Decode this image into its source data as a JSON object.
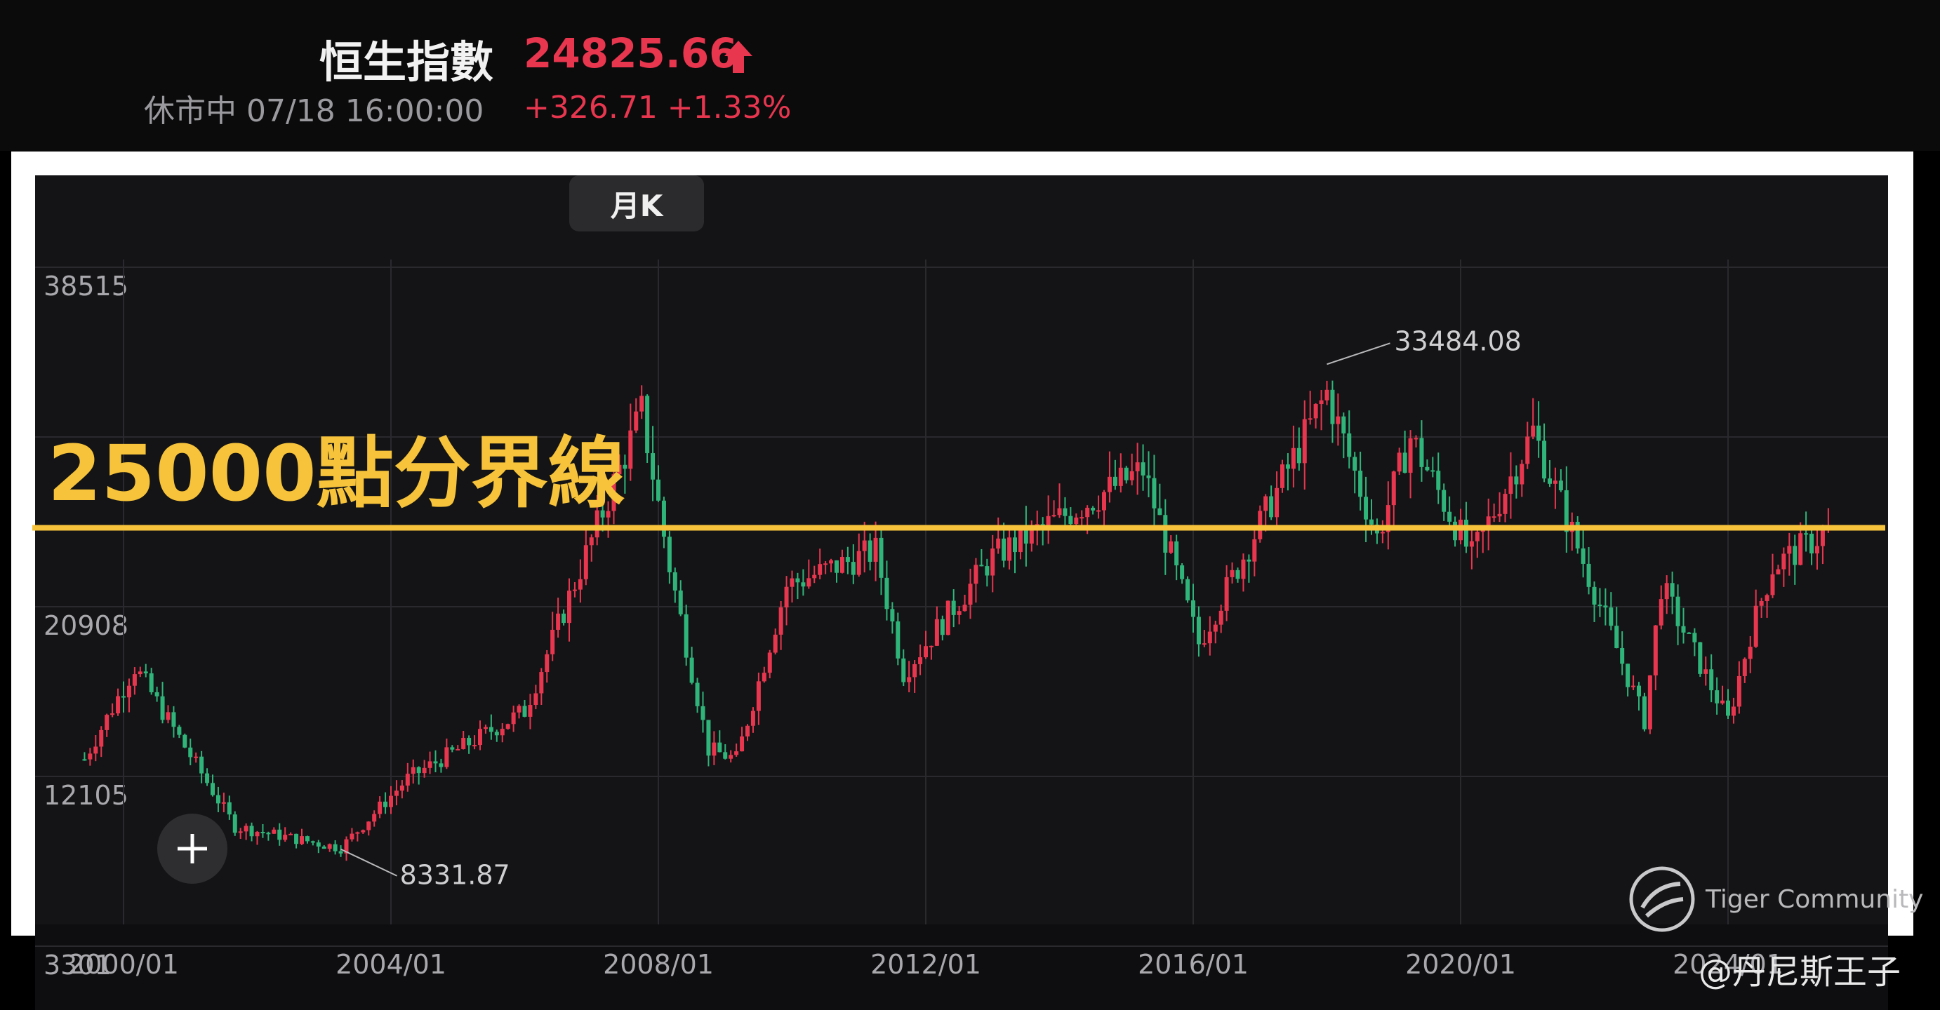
{
  "header": {
    "title": "恒生指數",
    "price": "24825.66",
    "status": "休市中 07/18 16:00:00",
    "change": "+326.71 +1.33%"
  },
  "toolbar": {
    "period_label": "月K"
  },
  "overlay": {
    "label": "25000點分界線",
    "line_value": 25000
  },
  "watermark": {
    "brand": "Tiger Community",
    "user": "@丹尼斯王子"
  },
  "icons": {
    "price_arrow": "arrow-up-icon",
    "add": "plus-icon",
    "brand": "tiger-logo-icon"
  },
  "colors": {
    "up": "#e8364f",
    "down": "#2fb57a",
    "highlight": "#f6c33a"
  },
  "chart_data": {
    "type": "candlestick",
    "title": "",
    "interval": "monthly",
    "y_ticks": [
      "38515",
      "20908",
      "12105",
      "3301"
    ],
    "x_ticks": [
      "2000/01",
      "2004/01",
      "2008/01",
      "2012/01",
      "2016/01",
      "2020/01",
      "2024/01"
    ],
    "annotations": [
      {
        "label": "33484.08",
        "date": "2018/01",
        "value": 33484.08,
        "type": "max"
      },
      {
        "label": "8331.87",
        "date": "2003/04",
        "value": 8331.87,
        "type": "min"
      }
    ],
    "reference_line": {
      "value": 25000,
      "color": "#f6c33a"
    },
    "close_path": [
      [
        "1999/06",
        13000
      ],
      [
        "2000/03",
        17800
      ],
      [
        "2001/09",
        9500
      ],
      [
        "2003/04",
        8400
      ],
      [
        "2004/04",
        12000
      ],
      [
        "2006/01",
        15500
      ],
      [
        "2007/10",
        31000
      ],
      [
        "2008/03",
        23000
      ],
      [
        "2008/10",
        13500
      ],
      [
        "2009/03",
        13000
      ],
      [
        "2009/12",
        22000
      ],
      [
        "2011/04",
        23800
      ],
      [
        "2011/09",
        17500
      ],
      [
        "2013/01",
        23500
      ],
      [
        "2015/04",
        28000
      ],
      [
        "2016/02",
        19000
      ],
      [
        "2018/01",
        32000
      ],
      [
        "2018/10",
        24500
      ],
      [
        "2019/04",
        29700
      ],
      [
        "2020/03",
        23500
      ],
      [
        "2021/02",
        30000
      ],
      [
        "2022/10",
        15000
      ],
      [
        "2023/01",
        22000
      ],
      [
        "2024/01",
        15000
      ],
      [
        "2024/05",
        19500
      ],
      [
        "2024/09",
        23000
      ],
      [
        "2025/07",
        24825.66
      ]
    ]
  }
}
